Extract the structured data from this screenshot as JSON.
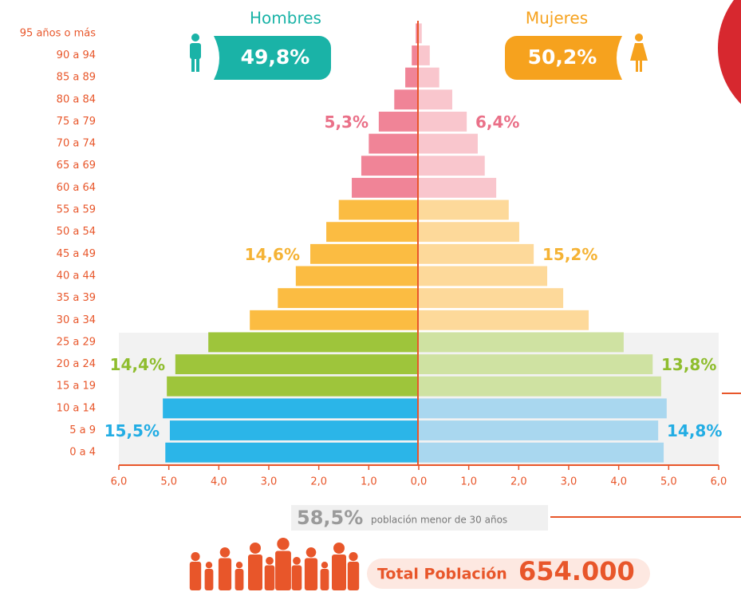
{
  "chart_data": {
    "type": "pyramid",
    "categories": [
      "95 años o más",
      "90 a 94",
      "85 a 89",
      "80 a 84",
      "75 a 79",
      "70 a 74",
      "65 a 69",
      "60 a 64",
      "55 a 59",
      "50 a 54",
      "45 a 49",
      "40 a 44",
      "35 a 39",
      "30 a 34",
      "25 a 29",
      "20 a 24",
      "15 a 19",
      "10 a 14",
      "5 a 9",
      "0 a 4"
    ],
    "series": [
      {
        "name": "Hombres",
        "side": "left",
        "share": 49.8,
        "share_label": "49,8%",
        "color": "#1ab3a7",
        "values": [
          0.06,
          0.14,
          0.27,
          0.49,
          0.8,
          1.0,
          1.15,
          1.34,
          1.6,
          1.85,
          2.17,
          2.46,
          2.82,
          3.38,
          4.21,
          4.87,
          5.04,
          5.12,
          4.98,
          5.07
        ],
        "colors": [
          "#f08497",
          "#f08497",
          "#f08497",
          "#f08497",
          "#f08497",
          "#f08497",
          "#f08497",
          "#f08497",
          "#fbbc42",
          "#fbbc42",
          "#fbbc42",
          "#fbbc42",
          "#fbbc42",
          "#fbbc42",
          "#9ec53b",
          "#9ec53b",
          "#9ec53b",
          "#2bb5e8",
          "#2bb5e8",
          "#2bb5e8"
        ],
        "group_values": [
          5.3,
          14.6,
          14.4,
          15.5
        ],
        "group_value_labels": [
          "5,3%",
          "14,6%",
          "14,4%",
          "15,5%"
        ]
      },
      {
        "name": "Mujeres",
        "side": "right",
        "share": 50.2,
        "share_label": "50,2%",
        "color": "#f6a21e",
        "values": [
          0.06,
          0.22,
          0.41,
          0.67,
          0.96,
          1.18,
          1.32,
          1.55,
          1.8,
          2.01,
          2.3,
          2.57,
          2.89,
          3.4,
          4.1,
          4.68,
          4.85,
          4.96,
          4.79,
          4.9
        ],
        "colors": [
          "#f9c6cd",
          "#f9c6cd",
          "#f9c6cd",
          "#f9c6cd",
          "#f9c6cd",
          "#f9c6cd",
          "#f9c6cd",
          "#f9c6cd",
          "#fdd99a",
          "#fdd99a",
          "#fdd99a",
          "#fdd99a",
          "#fdd99a",
          "#fdd99a",
          "#cfe2a2",
          "#cfe2a2",
          "#cfe2a2",
          "#a9d7ef",
          "#a9d7ef",
          "#a9d7ef"
        ],
        "group_values": [
          6.4,
          15.2,
          13.8,
          14.8
        ],
        "group_value_labels": [
          "6,4%",
          "15,2%",
          "13,8%",
          "14,8%"
        ]
      }
    ],
    "xlim": [
      -6,
      6
    ],
    "xticks": [
      {
        "value": -6,
        "label": "6,0"
      },
      {
        "value": -5,
        "label": "5,0"
      },
      {
        "value": -4,
        "label": "4,0"
      },
      {
        "value": -3,
        "label": "3,0"
      },
      {
        "value": -2,
        "label": "2,0"
      },
      {
        "value": -1,
        "label": "1,0"
      },
      {
        "value": 0,
        "label": "0,0"
      },
      {
        "value": 1,
        "label": "1,0"
      },
      {
        "value": 2,
        "label": "2,0"
      },
      {
        "value": 3,
        "label": "3,0"
      },
      {
        "value": 4,
        "label": "4,0"
      },
      {
        "value": 5,
        "label": "5,0"
      },
      {
        "value": 6,
        "label": "6,0"
      }
    ],
    "under30": {
      "value": 58.5,
      "value_label": "58,5%",
      "text": "población menor de 30 años"
    },
    "total": {
      "text": "Total Población",
      "value": 654000,
      "value_label": "654.000"
    }
  }
}
